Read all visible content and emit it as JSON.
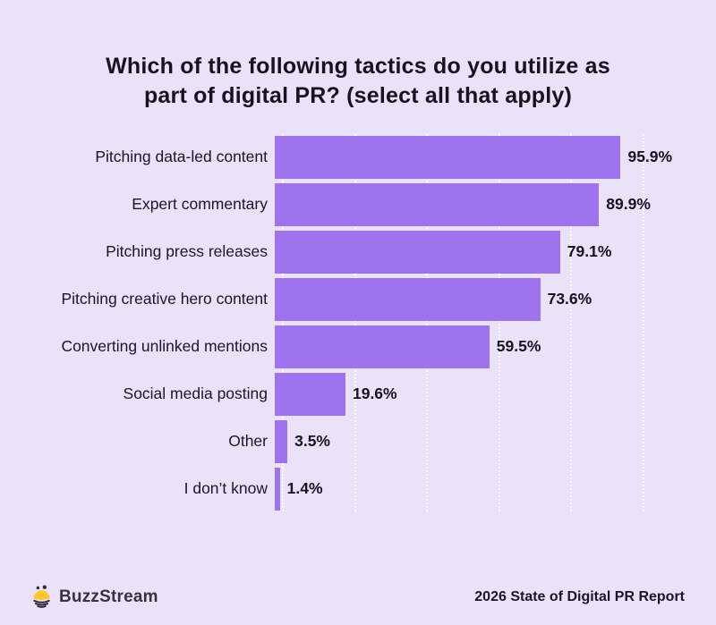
{
  "page": {
    "background": "#E9E2F9"
  },
  "title": {
    "line1": "Which of the following tactics do you utilize as",
    "line2": "part of digital PR? (select all that apply)"
  },
  "chart_data": {
    "type": "bar",
    "orientation": "horizontal",
    "title": "Which of the following tactics do you utilize as part of digital PR? (select all that apply)",
    "categories": [
      "Pitching data-led content",
      "Expert commentary",
      "Pitching press releases",
      "Pitching creative hero content",
      "Converting unlinked mentions",
      "Social media posting",
      "Other",
      "I don’t know"
    ],
    "values": [
      95.9,
      89.9,
      79.1,
      73.6,
      59.5,
      19.6,
      3.5,
      1.4
    ],
    "value_labels": [
      "95.9%",
      "89.9%",
      "79.1%",
      "73.6%",
      "59.5%",
      "19.6%",
      "3.5%",
      "1.4%"
    ],
    "xlabel": "",
    "ylabel": "",
    "xlim": [
      0,
      100
    ],
    "gridlines_percent": [
      0,
      20,
      40,
      60,
      80,
      100
    ],
    "grid": true,
    "legend": false,
    "bar_color": "#A073EE",
    "text_color": "#17131F",
    "background_color": "#E9E2F9"
  },
  "footer": {
    "brand": "BuzzStream",
    "credit": "2026 State of Digital PR Report",
    "bee_icon": {
      "body_color": "#FFC72C",
      "stripe_color": "#2E2B38"
    }
  }
}
